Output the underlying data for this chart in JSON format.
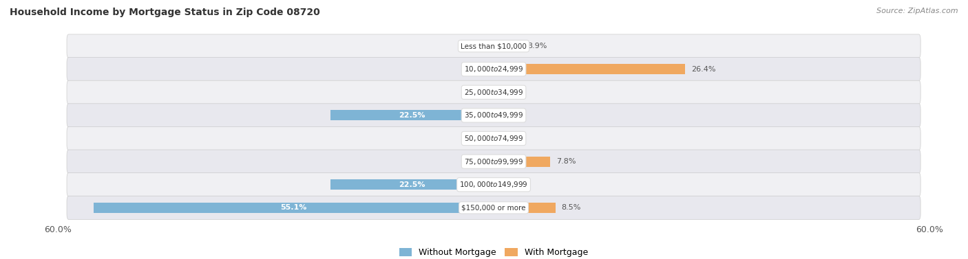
{
  "title": "Household Income by Mortgage Status in Zip Code 08720",
  "source": "Source: ZipAtlas.com",
  "categories": [
    "Less than $10,000",
    "$10,000 to $24,999",
    "$25,000 to $34,999",
    "$35,000 to $49,999",
    "$50,000 to $74,999",
    "$75,000 to $99,999",
    "$100,000 to $149,999",
    "$150,000 or more"
  ],
  "without_mortgage": [
    0.0,
    0.0,
    0.0,
    22.5,
    0.0,
    0.0,
    22.5,
    55.1
  ],
  "with_mortgage": [
    3.9,
    26.4,
    0.0,
    0.0,
    0.0,
    7.8,
    0.0,
    8.5
  ],
  "color_without": "#7EB4D5",
  "color_with": "#F0A860",
  "color_without_light": "#a8cce0",
  "color_with_light": "#f5c890",
  "axis_limit": 60.0,
  "row_bg_odd": "#f0f0f3",
  "row_bg_even": "#e8e8ee",
  "title_fontsize": 10,
  "source_fontsize": 8,
  "bar_height": 0.6,
  "fig_width": 14.06,
  "fig_height": 3.77,
  "label_fontsize": 8,
  "value_fontsize": 8
}
